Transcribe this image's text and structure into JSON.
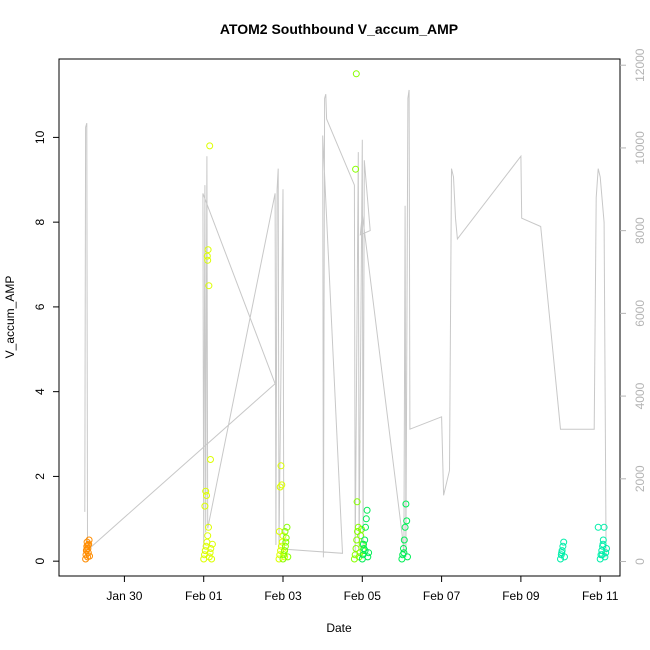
{
  "chart_data": {
    "type": "scatter",
    "title": "ATOM2 Southbound V_accum_AMP",
    "xlabel": "Date",
    "ylabel": "V_accum_AMP",
    "x_ticks": [
      "Jan 30",
      "Feb 01",
      "Feb 03",
      "Feb 05",
      "Feb 07",
      "Feb 09",
      "Feb 11"
    ],
    "x_tick_days": [
      30,
      32,
      34,
      36,
      38,
      40,
      42
    ],
    "xlim_days": [
      28.35,
      42.5
    ],
    "ylim": [
      -0.35,
      11.85
    ],
    "y_ticks": [
      0,
      2,
      4,
      6,
      8,
      10
    ],
    "y2lim": [
      -350,
      12150
    ],
    "y2_ticks": [
      0,
      2000,
      4000,
      6000,
      8000,
      10000,
      12000
    ],
    "y2_tick_labels": [
      "0",
      "2000",
      "4000",
      "6000",
      "8000",
      "10000",
      "12000"
    ],
    "series": [
      {
        "type": "scatter",
        "color": "#ff8c00",
        "points": [
          [
            29.02,
            0.05
          ],
          [
            29.03,
            0.15
          ],
          [
            29.04,
            0.25
          ],
          [
            29.05,
            0.35
          ],
          [
            29.06,
            0.45
          ],
          [
            29.07,
            0.1
          ],
          [
            29.08,
            0.3
          ],
          [
            29.09,
            0.2
          ],
          [
            29.1,
            0.4
          ],
          [
            29.11,
            0.5
          ],
          [
            29.12,
            0.12
          ],
          [
            29.05,
            0.28
          ],
          [
            29.08,
            0.38
          ]
        ]
      },
      {
        "type": "scatter",
        "color": "#ddff00",
        "points": [
          [
            32.0,
            0.05
          ],
          [
            32.02,
            0.15
          ],
          [
            32.04,
            0.25
          ],
          [
            32.06,
            0.35
          ],
          [
            32.08,
            0.45
          ],
          [
            32.1,
            0.6
          ],
          [
            32.12,
            0.8
          ],
          [
            32.14,
            0.1
          ],
          [
            32.16,
            0.2
          ],
          [
            32.18,
            0.3
          ],
          [
            32.2,
            0.05
          ],
          [
            32.22,
            0.4
          ],
          [
            32.03,
            1.3
          ],
          [
            32.05,
            1.65
          ],
          [
            32.07,
            1.55
          ],
          [
            32.09,
            7.2
          ],
          [
            32.11,
            7.35
          ],
          [
            32.13,
            6.5
          ],
          [
            32.15,
            9.8
          ],
          [
            32.17,
            2.4
          ],
          [
            32.1,
            7.1
          ],
          [
            33.9,
            0.05
          ],
          [
            33.92,
            0.15
          ],
          [
            33.94,
            0.25
          ],
          [
            33.96,
            0.35
          ],
          [
            33.98,
            0.45
          ],
          [
            34.0,
            0.6
          ],
          [
            33.93,
            1.75
          ],
          [
            33.95,
            2.25
          ],
          [
            33.97,
            1.8
          ],
          [
            34.02,
            0.2
          ],
          [
            34.04,
            0.1
          ],
          [
            33.91,
            0.7
          ]
        ]
      },
      {
        "type": "scatter",
        "color": "#88ff00",
        "points": [
          [
            34.0,
            0.05
          ],
          [
            34.02,
            0.15
          ],
          [
            34.04,
            0.25
          ],
          [
            34.06,
            0.35
          ],
          [
            34.08,
            0.55
          ],
          [
            34.1,
            0.8
          ],
          [
            34.12,
            0.1
          ],
          [
            34.05,
            0.7
          ],
          [
            34.07,
            0.45
          ],
          [
            35.8,
            0.05
          ],
          [
            35.82,
            0.15
          ],
          [
            35.84,
            0.3
          ],
          [
            35.86,
            0.5
          ],
          [
            35.88,
            0.7
          ],
          [
            35.9,
            0.8
          ],
          [
            35.92,
            0.1
          ],
          [
            35.94,
            0.2
          ],
          [
            35.96,
            0.6
          ],
          [
            35.98,
            0.75
          ],
          [
            35.83,
            9.25
          ],
          [
            35.85,
            11.5
          ],
          [
            35.87,
            1.4
          ],
          [
            36.0,
            0.4
          ],
          [
            36.02,
            0.25
          ]
        ]
      },
      {
        "type": "scatter",
        "color": "#00ee55",
        "points": [
          [
            36.0,
            0.05
          ],
          [
            36.02,
            0.15
          ],
          [
            36.04,
            0.3
          ],
          [
            36.06,
            0.5
          ],
          [
            36.08,
            0.8
          ],
          [
            36.1,
            1.0
          ],
          [
            36.12,
            1.2
          ],
          [
            36.14,
            0.1
          ],
          [
            36.16,
            0.2
          ],
          [
            36.03,
            0.4
          ],
          [
            36.07,
            0.25
          ],
          [
            37.0,
            0.05
          ],
          [
            37.02,
            0.15
          ],
          [
            37.04,
            0.3
          ],
          [
            37.06,
            0.5
          ],
          [
            37.08,
            0.8
          ],
          [
            37.1,
            1.35
          ],
          [
            37.12,
            0.95
          ],
          [
            37.14,
            0.1
          ],
          [
            37.05,
            0.2
          ]
        ]
      },
      {
        "type": "scatter",
        "color": "#00eeaa",
        "points": [
          [
            41.0,
            0.05
          ],
          [
            41.02,
            0.15
          ],
          [
            41.04,
            0.25
          ],
          [
            41.06,
            0.35
          ],
          [
            41.08,
            0.45
          ],
          [
            41.1,
            0.1
          ],
          [
            41.03,
            0.2
          ],
          [
            42.0,
            0.05
          ],
          [
            42.02,
            0.15
          ],
          [
            42.04,
            0.25
          ],
          [
            42.06,
            0.35
          ],
          [
            42.08,
            0.5
          ],
          [
            42.1,
            0.8
          ],
          [
            42.12,
            0.1
          ],
          [
            42.14,
            0.2
          ],
          [
            42.16,
            0.3
          ],
          [
            41.95,
            0.8
          ],
          [
            42.05,
            0.15
          ],
          [
            42.07,
            0.4
          ]
        ]
      }
    ],
    "line_series": {
      "axis": "right",
      "color": "#c8c8c8",
      "points": [
        [
          29.0,
          1200
        ],
        [
          29.02,
          10500
        ],
        [
          29.05,
          10600
        ],
        [
          29.07,
          500
        ],
        [
          29.1,
          300
        ],
        [
          33.8,
          4300
        ],
        [
          31.98,
          8900
        ],
        [
          32.0,
          300
        ],
        [
          32.03,
          9100
        ],
        [
          32.05,
          700
        ],
        [
          32.08,
          9800
        ],
        [
          32.1,
          800
        ],
        [
          33.8,
          8900
        ],
        [
          33.82,
          400
        ],
        [
          33.85,
          9000
        ],
        [
          33.88,
          9500
        ],
        [
          33.9,
          350
        ],
        [
          34.0,
          9000
        ],
        [
          34.02,
          300
        ],
        [
          35.5,
          200
        ],
        [
          35.0,
          10300
        ],
        [
          35.02,
          100
        ],
        [
          35.05,
          11200
        ],
        [
          35.08,
          11300
        ],
        [
          35.1,
          10700
        ],
        [
          35.8,
          9100
        ],
        [
          35.82,
          200
        ],
        [
          35.9,
          9900
        ],
        [
          35.92,
          300
        ],
        [
          36.0,
          10200
        ],
        [
          36.02,
          400
        ],
        [
          36.05,
          9700
        ],
        [
          36.2,
          8000
        ],
        [
          35.95,
          7900
        ],
        [
          36.0,
          8400
        ],
        [
          37.0,
          700
        ],
        [
          37.05,
          200
        ],
        [
          37.08,
          8600
        ],
        [
          37.1,
          100
        ],
        [
          37.15,
          11200
        ],
        [
          37.18,
          11400
        ],
        [
          37.2,
          3200
        ],
        [
          38.0,
          3500
        ],
        [
          38.05,
          1600
        ],
        [
          38.2,
          2200
        ],
        [
          38.25,
          9500
        ],
        [
          38.3,
          9300
        ],
        [
          38.35,
          8300
        ],
        [
          38.4,
          7800
        ],
        [
          40.0,
          9800
        ],
        [
          40.02,
          8300
        ],
        [
          40.5,
          8100
        ],
        [
          41.0,
          3200
        ],
        [
          41.85,
          3200
        ],
        [
          41.9,
          8800
        ],
        [
          41.95,
          9500
        ],
        [
          42.0,
          9300
        ],
        [
          42.1,
          8200
        ],
        [
          42.15,
          100
        ]
      ]
    }
  }
}
